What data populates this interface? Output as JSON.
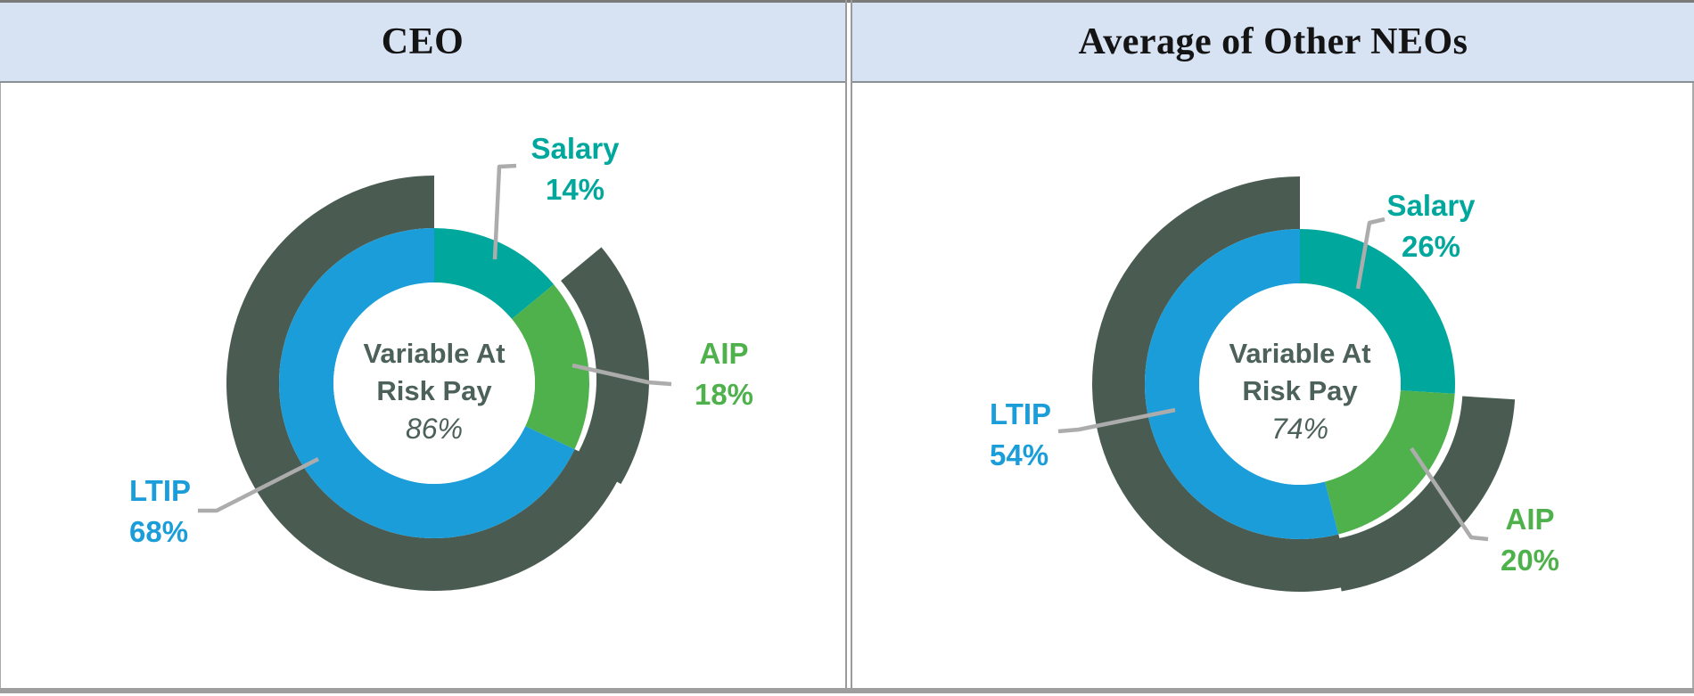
{
  "header": {
    "columns": [
      {
        "title": "CEO"
      },
      {
        "title": "Average of Other NEOs"
      }
    ]
  },
  "colors": {
    "teal": "#00A79C",
    "green": "#4FB14C",
    "blue": "#1B9DD9",
    "dark_ring": "#4A5C52",
    "center_text": "#4C6159",
    "leader_line": "#ACACAC",
    "header_bg": "#D7E3F3"
  },
  "chart_data": [
    {
      "type": "pie",
      "title": "CEO",
      "units": "percent",
      "center_label_line1": "Variable At",
      "center_label_line2": "Risk Pay",
      "center_value": "86%",
      "outer_ring": {
        "label": "Variable At Risk Pay",
        "value": 86,
        "color": "#4A5C52"
      },
      "slices": [
        {
          "label": "Salary",
          "value": 14,
          "pct": "14%",
          "color": "#00A79C"
        },
        {
          "label": "AIP",
          "value": 18,
          "pct": "18%",
          "color": "#4FB14C"
        },
        {
          "label": "LTIP",
          "value": 68,
          "pct": "68%",
          "color": "#1B9DD9"
        }
      ]
    },
    {
      "type": "pie",
      "title": "Average of Other NEOs",
      "units": "percent",
      "center_label_line1": "Variable At",
      "center_label_line2": "Risk Pay",
      "center_value": "74%",
      "outer_ring": {
        "label": "Variable At Risk Pay",
        "value": 74,
        "color": "#4A5C52"
      },
      "slices": [
        {
          "label": "Salary",
          "value": 26,
          "pct": "26%",
          "color": "#00A79C"
        },
        {
          "label": "AIP",
          "value": 20,
          "pct": "20%",
          "color": "#4FB14C"
        },
        {
          "label": "LTIP",
          "value": 54,
          "pct": "54%",
          "color": "#1B9DD9"
        }
      ]
    }
  ]
}
